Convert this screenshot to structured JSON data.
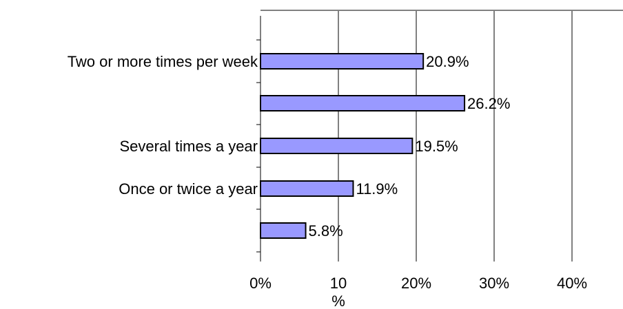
{
  "chart_data": {
    "type": "bar",
    "orientation": "horizontal",
    "categories": [
      "Two or more times per week",
      "",
      "Several times a year",
      "Once or twice a year",
      ""
    ],
    "values": [
      20.9,
      26.2,
      19.5,
      11.9,
      5.8
    ],
    "data_labels": [
      "20.9%",
      "26.2%",
      "19.5%",
      "11.9%",
      "5.8%"
    ],
    "x_ticks": [
      0,
      10,
      20,
      30,
      40
    ],
    "x_tick_labels": [
      "0%",
      "10\n%",
      "20%",
      "30%",
      "40%"
    ],
    "xlim": [
      0,
      46
    ],
    "grid": "vertical",
    "legend": "none",
    "colors": {
      "bar_fill": "#9999FF",
      "bar_stroke": "#000000",
      "gridline": "#000000",
      "plot_border": "#808080"
    }
  }
}
